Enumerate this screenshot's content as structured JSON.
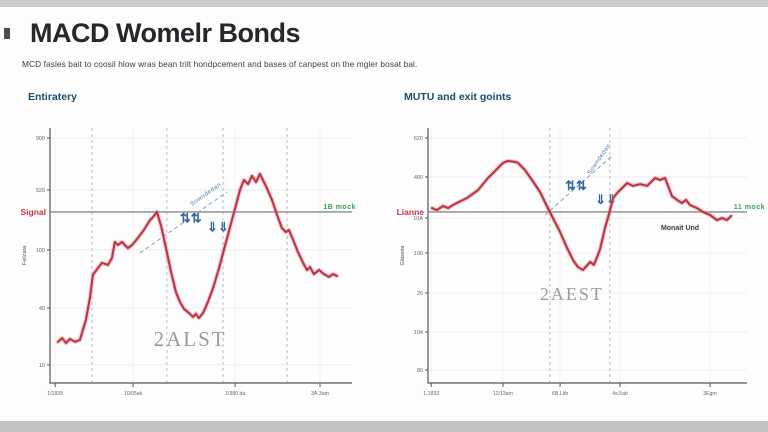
{
  "header": {
    "title": "MACD Womelr Bonds",
    "subtitle": "MCD fasles bait to coosil hlow wras bean trilt hondpcement and bases of canpest on the mgler bosat bal."
  },
  "palette": {
    "line_red": "#bd3443",
    "line_red_glow": "#d98a96",
    "signal_gray": "#8a8a8a",
    "annotation_blue": "#35679e",
    "green_label": "#37a152",
    "section_header": "#1b4d68",
    "watermark_gray": "#9a9aa0"
  },
  "chart_data": [
    {
      "type": "line",
      "title": "Entiratery",
      "ylabel": "Felicata",
      "signal": {
        "label": "Signal",
        "right_label": "1B mock",
        "y_frac": 0.329
      },
      "y_ticks": [
        {
          "label": "900",
          "f": 0.039
        },
        {
          "label": "520",
          "f": 0.243
        },
        {
          "label": "100",
          "f": 0.478
        },
        {
          "label": "40",
          "f": 0.706
        },
        {
          "label": "10",
          "f": 0.929
        }
      ],
      "x_ticks": [
        {
          "label": "1/1839",
          "f": 0.017
        },
        {
          "label": "10/05ak",
          "f": 0.275
        },
        {
          "label": "1/380.da",
          "f": 0.613
        },
        {
          "label": "3A.3am",
          "f": 0.894
        }
      ],
      "dashed_vlines_f": [
        0.139,
        0.387,
        0.573,
        0.785
      ],
      "annotation": {
        "text": "Sowndedan",
        "line": [
          0.298,
          0.49,
          0.586,
          0.251
        ],
        "angle": -35,
        "tx": 0.47,
        "ty": 0.306,
        "glyphs": [
          {
            "s": "⇅⇅",
            "x": 0.43,
            "y": 0.37
          },
          {
            "s": "⇓⇓",
            "x": 0.52,
            "y": 0.405
          }
        ]
      },
      "watermark": {
        "text": "2ALST",
        "x": 0.464,
        "y": 0.855,
        "size": 21
      },
      "points_f": [
        [
          0.026,
          0.839
        ],
        [
          0.04,
          0.824
        ],
        [
          0.053,
          0.843
        ],
        [
          0.066,
          0.827
        ],
        [
          0.083,
          0.839
        ],
        [
          0.099,
          0.831
        ],
        [
          0.119,
          0.753
        ],
        [
          0.132,
          0.667
        ],
        [
          0.142,
          0.576
        ],
        [
          0.159,
          0.549
        ],
        [
          0.172,
          0.529
        ],
        [
          0.192,
          0.537
        ],
        [
          0.205,
          0.51
        ],
        [
          0.215,
          0.447
        ],
        [
          0.225,
          0.459
        ],
        [
          0.238,
          0.447
        ],
        [
          0.258,
          0.471
        ],
        [
          0.272,
          0.459
        ],
        [
          0.291,
          0.431
        ],
        [
          0.311,
          0.4
        ],
        [
          0.331,
          0.361
        ],
        [
          0.344,
          0.345
        ],
        [
          0.354,
          0.329
        ],
        [
          0.368,
          0.384
        ],
        [
          0.384,
          0.471
        ],
        [
          0.401,
          0.565
        ],
        [
          0.417,
          0.643
        ],
        [
          0.43,
          0.682
        ],
        [
          0.444,
          0.71
        ],
        [
          0.46,
          0.725
        ],
        [
          0.474,
          0.741
        ],
        [
          0.483,
          0.729
        ],
        [
          0.493,
          0.745
        ],
        [
          0.507,
          0.725
        ],
        [
          0.523,
          0.682
        ],
        [
          0.54,
          0.627
        ],
        [
          0.56,
          0.549
        ],
        [
          0.579,
          0.463
        ],
        [
          0.599,
          0.376
        ],
        [
          0.616,
          0.302
        ],
        [
          0.629,
          0.243
        ],
        [
          0.642,
          0.204
        ],
        [
          0.656,
          0.22
        ],
        [
          0.669,
          0.188
        ],
        [
          0.682,
          0.212
        ],
        [
          0.695,
          0.18
        ],
        [
          0.705,
          0.204
        ],
        [
          0.718,
          0.235
        ],
        [
          0.735,
          0.282
        ],
        [
          0.752,
          0.341
        ],
        [
          0.768,
          0.392
        ],
        [
          0.781,
          0.408
        ],
        [
          0.791,
          0.4
        ],
        [
          0.805,
          0.439
        ],
        [
          0.821,
          0.486
        ],
        [
          0.838,
          0.529
        ],
        [
          0.851,
          0.557
        ],
        [
          0.861,
          0.545
        ],
        [
          0.874,
          0.573
        ],
        [
          0.891,
          0.557
        ],
        [
          0.907,
          0.573
        ],
        [
          0.924,
          0.584
        ],
        [
          0.937,
          0.573
        ],
        [
          0.95,
          0.58
        ]
      ]
    },
    {
      "type": "line",
      "title": "MUTU and exit goints",
      "ylabel": "Glaswta",
      "signal": {
        "label": "Lianne",
        "right_label": "11 mock",
        "y_frac": 0.329
      },
      "momentum_label": {
        "text": "Monait Und",
        "x": 0.79,
        "y": 0.4
      },
      "y_ticks": [
        {
          "label": "620",
          "f": 0.039
        },
        {
          "label": "400",
          "f": 0.192
        },
        {
          "label": "10A",
          "f": 0.353
        },
        {
          "label": "100",
          "f": 0.49
        },
        {
          "label": "26",
          "f": 0.647
        },
        {
          "label": "104",
          "f": 0.8
        },
        {
          "label": "80",
          "f": 0.949
        }
      ],
      "x_ticks": [
        {
          "label": "1,1833",
          "f": 0.01
        },
        {
          "label": "11/13am",
          "f": 0.235
        },
        {
          "label": "6B.Lkb",
          "f": 0.414
        },
        {
          "label": "4s.5ab",
          "f": 0.602
        },
        {
          "label": "3Egm",
          "f": 0.884
        }
      ],
      "dashed_vlines_f": [
        0.382,
        0.57
      ],
      "annotation": {
        "text": "Sowndedan",
        "line": [
          0.367,
          0.341,
          0.58,
          0.106
        ],
        "angle": -55,
        "tx": 0.508,
        "ty": 0.184,
        "glyphs": [
          {
            "s": "⇅⇅",
            "x": 0.43,
            "y": 0.243
          },
          {
            "s": "⇓⇓",
            "x": 0.524,
            "y": 0.298
          }
        ]
      },
      "watermark": {
        "text": "2AEST",
        "x": 0.451,
        "y": 0.675,
        "size": 18
      },
      "points_f": [
        [
          0.013,
          0.314
        ],
        [
          0.028,
          0.322
        ],
        [
          0.047,
          0.306
        ],
        [
          0.063,
          0.314
        ],
        [
          0.078,
          0.302
        ],
        [
          0.097,
          0.29
        ],
        [
          0.122,
          0.275
        ],
        [
          0.157,
          0.243
        ],
        [
          0.188,
          0.196
        ],
        [
          0.213,
          0.165
        ],
        [
          0.235,
          0.137
        ],
        [
          0.251,
          0.129
        ],
        [
          0.273,
          0.133
        ],
        [
          0.282,
          0.137
        ],
        [
          0.304,
          0.165
        ],
        [
          0.326,
          0.204
        ],
        [
          0.351,
          0.251
        ],
        [
          0.376,
          0.314
        ],
        [
          0.398,
          0.369
        ],
        [
          0.414,
          0.408
        ],
        [
          0.436,
          0.471
        ],
        [
          0.455,
          0.518
        ],
        [
          0.47,
          0.545
        ],
        [
          0.486,
          0.557
        ],
        [
          0.508,
          0.525
        ],
        [
          0.52,
          0.537
        ],
        [
          0.539,
          0.478
        ],
        [
          0.555,
          0.392
        ],
        [
          0.571,
          0.322
        ],
        [
          0.58,
          0.275
        ],
        [
          0.596,
          0.251
        ],
        [
          0.624,
          0.216
        ],
        [
          0.643,
          0.227
        ],
        [
          0.665,
          0.22
        ],
        [
          0.687,
          0.227
        ],
        [
          0.712,
          0.196
        ],
        [
          0.727,
          0.204
        ],
        [
          0.743,
          0.196
        ],
        [
          0.765,
          0.267
        ],
        [
          0.781,
          0.282
        ],
        [
          0.796,
          0.294
        ],
        [
          0.809,
          0.282
        ],
        [
          0.821,
          0.302
        ],
        [
          0.843,
          0.314
        ],
        [
          0.862,
          0.329
        ],
        [
          0.884,
          0.341
        ],
        [
          0.906,
          0.361
        ],
        [
          0.922,
          0.353
        ],
        [
          0.937,
          0.361
        ],
        [
          0.95,
          0.345
        ]
      ]
    }
  ]
}
